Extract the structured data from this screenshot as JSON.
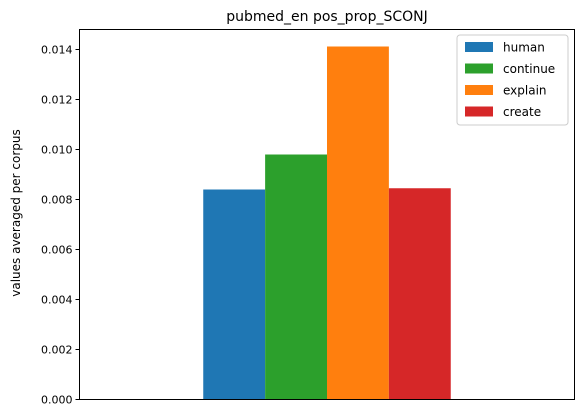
{
  "chart_data": {
    "type": "bar",
    "title": "pubmed_en pos_prop_SCONJ",
    "xlabel": "",
    "ylabel": "values averaged per corpus",
    "categories": [
      ""
    ],
    "series": [
      {
        "name": "human",
        "values": [
          0.0084
        ],
        "color": "#1f77b4"
      },
      {
        "name": "continue",
        "values": [
          0.0098
        ],
        "color": "#2ca02c"
      },
      {
        "name": "explain",
        "values": [
          0.01412
        ],
        "color": "#ff7f0e"
      },
      {
        "name": "create",
        "values": [
          0.00845
        ],
        "color": "#d62728"
      }
    ],
    "ylim": [
      0,
      0.0148
    ],
    "yticks": [
      0,
      0.002,
      0.004,
      0.006,
      0.008,
      0.01,
      0.012,
      0.014
    ],
    "ytick_labels": [
      "0.000",
      "0.002",
      "0.004",
      "0.006",
      "0.008",
      "0.010",
      "0.012",
      "0.014"
    ],
    "grid": false,
    "legend": "top-right"
  }
}
